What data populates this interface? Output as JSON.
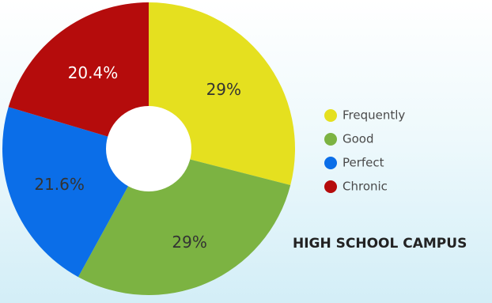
{
  "chart_data": {
    "type": "pie",
    "variant": "donut",
    "title": "HIGH SCHOOL CAMPUS",
    "start_angle_deg": 0,
    "direction": "clockwise",
    "legend_position": "right",
    "slices": [
      {
        "label": "Frequently",
        "value": 29,
        "value_label": "29%",
        "color": "#e5e01f",
        "label_color": "#333333"
      },
      {
        "label": "Good",
        "value": 29,
        "value_label": "29%",
        "color": "#7cb342",
        "label_color": "#333333"
      },
      {
        "label": "Perfect",
        "value": 21.6,
        "value_label": "21.6%",
        "color": "#0b6ee8",
        "label_color": "#333333"
      },
      {
        "label": "Chronic",
        "value": 20.4,
        "value_label": "20.4%",
        "color": "#b50c0c",
        "label_color": "#ffffff"
      }
    ]
  }
}
